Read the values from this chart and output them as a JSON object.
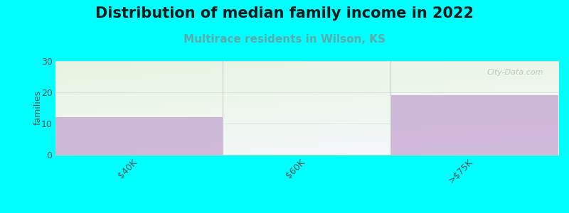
{
  "title": "Distribution of median family income in 2022",
  "subtitle": "Multirace residents in Wilson, KS",
  "categories": [
    "$40K",
    "$60K",
    ">$75K"
  ],
  "values": [
    12,
    0,
    19
  ],
  "bar_color": "#c9aed6",
  "background_color": "#00ffff",
  "ylabel": "families",
  "ylim": [
    0,
    30
  ],
  "yticks": [
    0,
    10,
    20,
    30
  ],
  "title_fontsize": 15,
  "subtitle_fontsize": 11,
  "subtitle_color": "#5aacac",
  "watermark": "City-Data.com",
  "gradient_top_left": "#e8f5e0",
  "gradient_bottom_right": "#f5f5f8",
  "tick_color": "#555555",
  "grid_color": "#dddddd"
}
